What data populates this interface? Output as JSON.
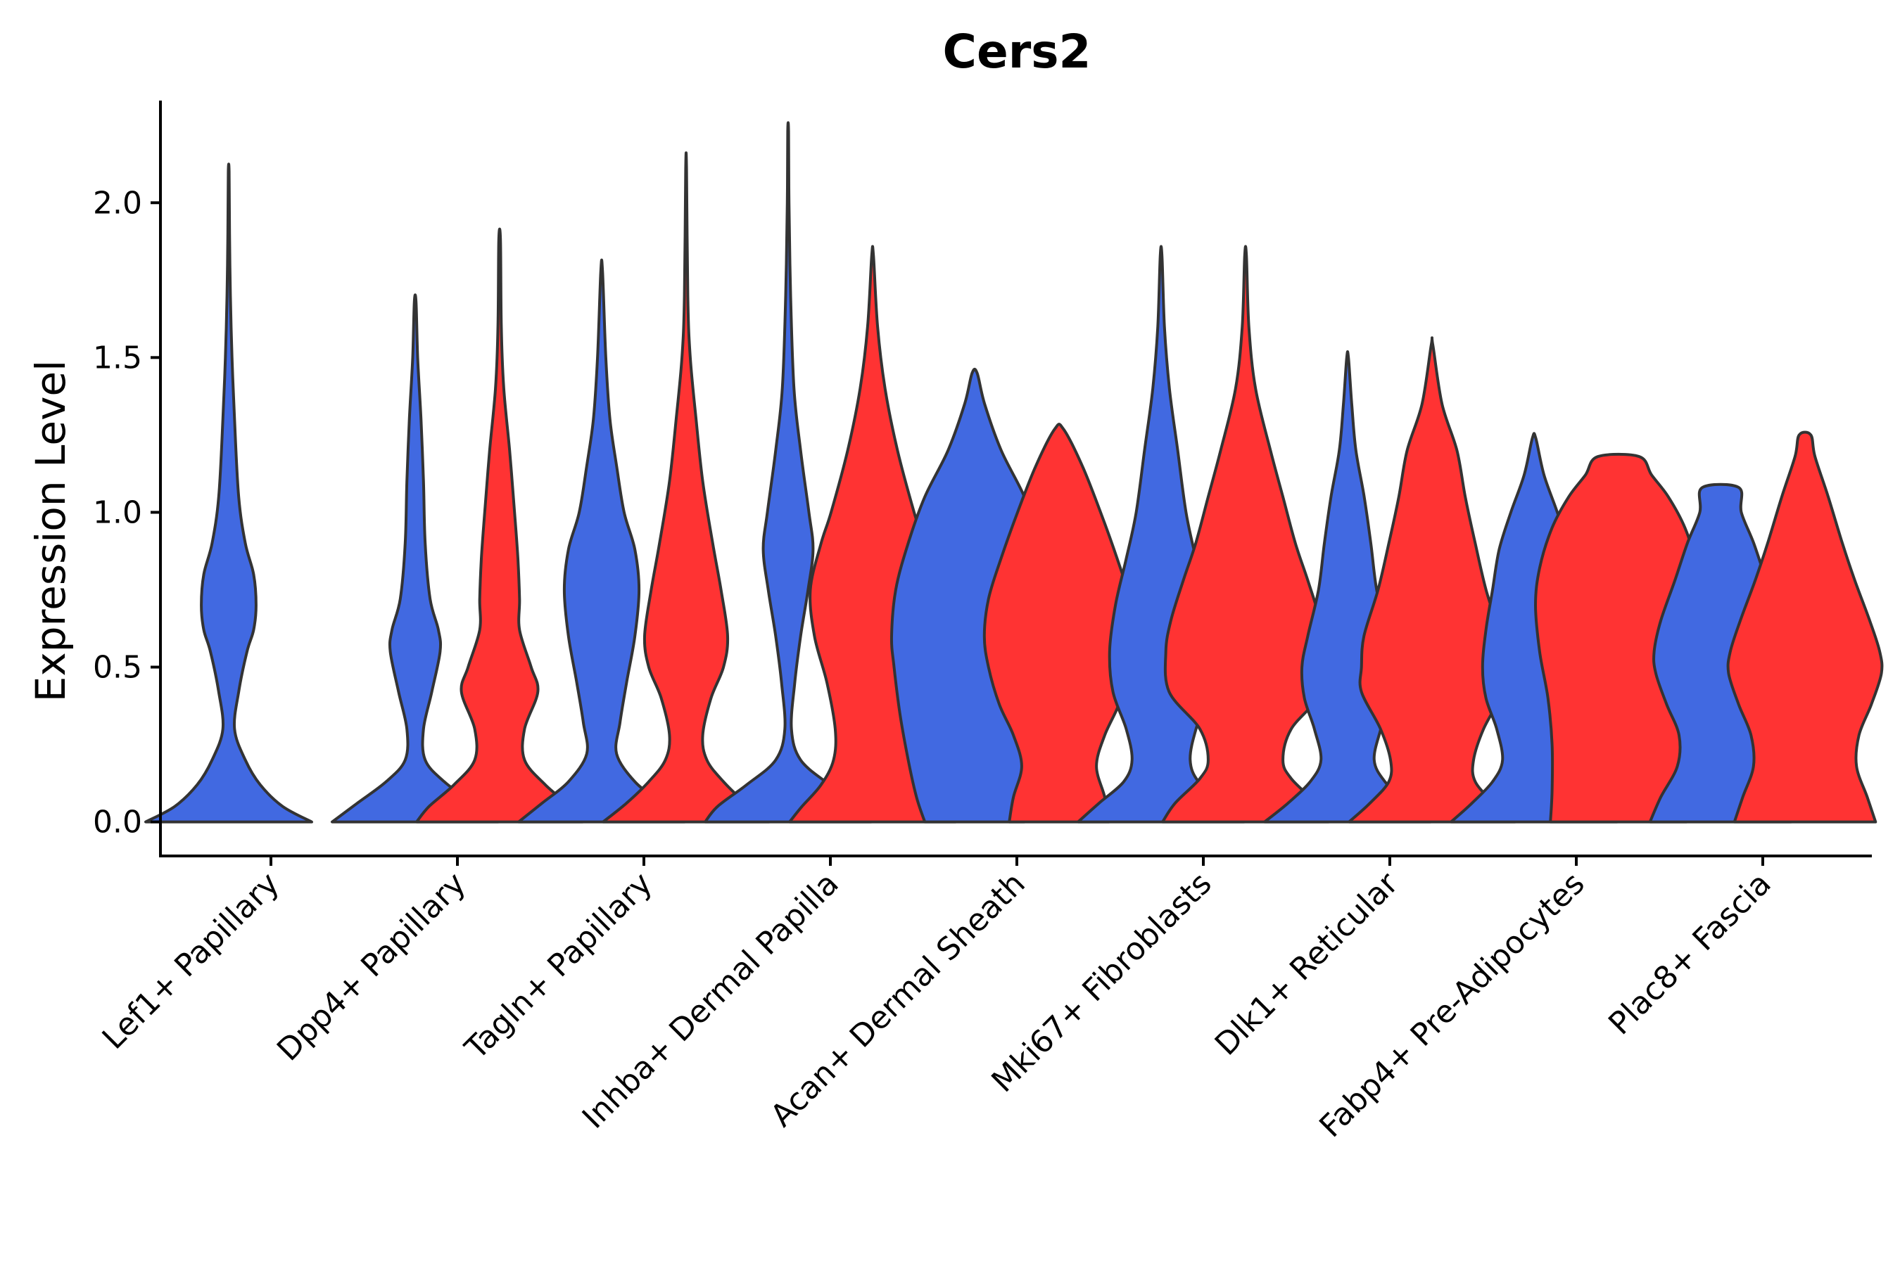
{
  "chart_data": {
    "type": "violin",
    "title": "Cers2",
    "xlabel": "",
    "ylabel": "Expression Level",
    "ylim": [
      -0.11,
      2.33
    ],
    "yticks": [
      "0.0",
      "0.5",
      "1.0",
      "1.5",
      "2.0"
    ],
    "ytick_values": [
      0.0,
      0.5,
      1.0,
      1.5,
      2.0
    ],
    "categories": [
      "Lef1+ Papillary",
      "Dpp4+ Papillary",
      "Tagln+ Papillary",
      "Inhba+ Dermal Papilla",
      "Acan+ Dermal Sheath",
      "Mki67+ Fibroblasts",
      "Dlk1+ Reticular",
      "Fabp4+ Pre-Adipocytes",
      "Plac8+ Fascia"
    ],
    "colors": {
      "blue_group": "#4169E1",
      "red_group": "#FF3333",
      "outline": "#333333"
    },
    "violins": [
      {
        "category": "Lef1+ Papillary",
        "group": "blue",
        "max": 2.1,
        "profile": [
          [
            0.0,
            1.0
          ],
          [
            0.05,
            0.65
          ],
          [
            0.12,
            0.38
          ],
          [
            0.2,
            0.2
          ],
          [
            0.3,
            0.07
          ],
          [
            0.42,
            0.12
          ],
          [
            0.55,
            0.22
          ],
          [
            0.62,
            0.3
          ],
          [
            0.7,
            0.33
          ],
          [
            0.8,
            0.3
          ],
          [
            0.9,
            0.2
          ],
          [
            1.05,
            0.12
          ],
          [
            1.3,
            0.07
          ],
          [
            1.5,
            0.04
          ],
          [
            1.7,
            0.02
          ],
          [
            1.9,
            0.01
          ],
          [
            2.1,
            0.005
          ]
        ]
      },
      {
        "category": "Dpp4+ Papillary",
        "group": "blue",
        "max": 1.68,
        "profile": [
          [
            0.0,
            1.0
          ],
          [
            0.06,
            0.7
          ],
          [
            0.13,
            0.35
          ],
          [
            0.2,
            0.12
          ],
          [
            0.3,
            0.1
          ],
          [
            0.42,
            0.2
          ],
          [
            0.55,
            0.3
          ],
          [
            0.62,
            0.28
          ],
          [
            0.72,
            0.18
          ],
          [
            0.9,
            0.12
          ],
          [
            1.1,
            0.1
          ],
          [
            1.3,
            0.07
          ],
          [
            1.5,
            0.03
          ],
          [
            1.68,
            0.01
          ]
        ]
      },
      {
        "category": "Dpp4+ Papillary",
        "group": "red",
        "max": 1.88,
        "profile": [
          [
            0.0,
            1.0
          ],
          [
            0.05,
            0.85
          ],
          [
            0.12,
            0.55
          ],
          [
            0.2,
            0.3
          ],
          [
            0.3,
            0.3
          ],
          [
            0.42,
            0.46
          ],
          [
            0.5,
            0.38
          ],
          [
            0.62,
            0.24
          ],
          [
            0.72,
            0.24
          ],
          [
            0.85,
            0.22
          ],
          [
            1.0,
            0.18
          ],
          [
            1.2,
            0.12
          ],
          [
            1.4,
            0.05
          ],
          [
            1.6,
            0.02
          ],
          [
            1.88,
            0.01
          ]
        ]
      },
      {
        "category": "Tagln+ Papillary",
        "group": "blue",
        "max": 1.78,
        "profile": [
          [
            0.0,
            1.0
          ],
          [
            0.06,
            0.72
          ],
          [
            0.13,
            0.4
          ],
          [
            0.22,
            0.18
          ],
          [
            0.32,
            0.22
          ],
          [
            0.45,
            0.3
          ],
          [
            0.6,
            0.4
          ],
          [
            0.75,
            0.45
          ],
          [
            0.88,
            0.4
          ],
          [
            1.0,
            0.27
          ],
          [
            1.15,
            0.18
          ],
          [
            1.3,
            0.1
          ],
          [
            1.5,
            0.05
          ],
          [
            1.78,
            0.01
          ]
        ]
      },
      {
        "category": "Tagln+ Papillary",
        "group": "red",
        "max": 2.11,
        "profile": [
          [
            0.0,
            1.0
          ],
          [
            0.06,
            0.72
          ],
          [
            0.13,
            0.45
          ],
          [
            0.2,
            0.25
          ],
          [
            0.28,
            0.2
          ],
          [
            0.4,
            0.3
          ],
          [
            0.5,
            0.45
          ],
          [
            0.6,
            0.5
          ],
          [
            0.75,
            0.42
          ],
          [
            0.9,
            0.32
          ],
          [
            1.1,
            0.2
          ],
          [
            1.3,
            0.12
          ],
          [
            1.5,
            0.05
          ],
          [
            1.7,
            0.02
          ],
          [
            2.11,
            0.005
          ]
        ]
      },
      {
        "category": "Inhba+ Dermal Papilla",
        "group": "blue",
        "max": 2.23,
        "profile": [
          [
            0.0,
            1.0
          ],
          [
            0.05,
            0.85
          ],
          [
            0.12,
            0.5
          ],
          [
            0.2,
            0.15
          ],
          [
            0.3,
            0.04
          ],
          [
            0.45,
            0.08
          ],
          [
            0.6,
            0.15
          ],
          [
            0.75,
            0.24
          ],
          [
            0.88,
            0.3
          ],
          [
            1.0,
            0.25
          ],
          [
            1.2,
            0.15
          ],
          [
            1.4,
            0.07
          ],
          [
            1.7,
            0.03
          ],
          [
            2.0,
            0.01
          ],
          [
            2.23,
            0.005
          ]
        ]
      },
      {
        "category": "Inhba+ Dermal Papilla",
        "group": "red",
        "max": 1.83,
        "profile": [
          [
            0.0,
            1.0
          ],
          [
            0.05,
            0.85
          ],
          [
            0.12,
            0.62
          ],
          [
            0.2,
            0.47
          ],
          [
            0.3,
            0.45
          ],
          [
            0.45,
            0.55
          ],
          [
            0.6,
            0.7
          ],
          [
            0.75,
            0.75
          ],
          [
            0.9,
            0.62
          ],
          [
            1.0,
            0.5
          ],
          [
            1.2,
            0.3
          ],
          [
            1.4,
            0.15
          ],
          [
            1.6,
            0.06
          ],
          [
            1.83,
            0.01
          ]
        ]
      },
      {
        "category": "Acan+ Dermal Sheath",
        "group": "blue",
        "max": 1.45,
        "profile": [
          [
            0.0,
            0.6
          ],
          [
            0.08,
            0.7
          ],
          [
            0.2,
            0.8
          ],
          [
            0.35,
            0.9
          ],
          [
            0.5,
            0.97
          ],
          [
            0.6,
            1.0
          ],
          [
            0.75,
            0.95
          ],
          [
            0.9,
            0.8
          ],
          [
            1.05,
            0.6
          ],
          [
            1.2,
            0.32
          ],
          [
            1.35,
            0.12
          ],
          [
            1.45,
            0.03
          ]
        ]
      },
      {
        "category": "Acan+ Dermal Sheath",
        "group": "red",
        "max": 1.27,
        "profile": [
          [
            0.0,
            0.6
          ],
          [
            0.08,
            0.55
          ],
          [
            0.18,
            0.45
          ],
          [
            0.28,
            0.55
          ],
          [
            0.38,
            0.72
          ],
          [
            0.5,
            0.85
          ],
          [
            0.6,
            0.9
          ],
          [
            0.72,
            0.85
          ],
          [
            0.85,
            0.7
          ],
          [
            1.0,
            0.5
          ],
          [
            1.15,
            0.28
          ],
          [
            1.27,
            0.05
          ]
        ]
      },
      {
        "category": "Mki67+ Fibroblasts",
        "group": "blue",
        "max": 1.83,
        "profile": [
          [
            0.0,
            1.0
          ],
          [
            0.06,
            0.75
          ],
          [
            0.13,
            0.45
          ],
          [
            0.2,
            0.35
          ],
          [
            0.3,
            0.42
          ],
          [
            0.42,
            0.58
          ],
          [
            0.55,
            0.62
          ],
          [
            0.7,
            0.55
          ],
          [
            0.85,
            0.42
          ],
          [
            1.0,
            0.3
          ],
          [
            1.2,
            0.2
          ],
          [
            1.4,
            0.1
          ],
          [
            1.6,
            0.04
          ],
          [
            1.83,
            0.01
          ]
        ]
      },
      {
        "category": "Mki67+ Fibroblasts",
        "group": "red",
        "max": 1.83,
        "profile": [
          [
            0.0,
            1.0
          ],
          [
            0.06,
            0.85
          ],
          [
            0.14,
            0.55
          ],
          [
            0.2,
            0.45
          ],
          [
            0.3,
            0.55
          ],
          [
            0.42,
            0.92
          ],
          [
            0.55,
            0.96
          ],
          [
            0.65,
            0.9
          ],
          [
            0.78,
            0.75
          ],
          [
            0.9,
            0.6
          ],
          [
            1.05,
            0.45
          ],
          [
            1.2,
            0.3
          ],
          [
            1.4,
            0.12
          ],
          [
            1.6,
            0.04
          ],
          [
            1.83,
            0.01
          ]
        ]
      },
      {
        "category": "Dlk1+ Reticular",
        "group": "blue",
        "max": 1.5,
        "profile": [
          [
            0.0,
            1.0
          ],
          [
            0.06,
            0.72
          ],
          [
            0.13,
            0.45
          ],
          [
            0.2,
            0.32
          ],
          [
            0.3,
            0.4
          ],
          [
            0.4,
            0.52
          ],
          [
            0.5,
            0.55
          ],
          [
            0.6,
            0.48
          ],
          [
            0.75,
            0.35
          ],
          [
            0.9,
            0.28
          ],
          [
            1.05,
            0.2
          ],
          [
            1.2,
            0.1
          ],
          [
            1.35,
            0.05
          ],
          [
            1.5,
            0.01
          ]
        ]
      },
      {
        "category": "Dlk1+ Reticular",
        "group": "red",
        "max": 1.54,
        "profile": [
          [
            0.0,
            1.0
          ],
          [
            0.06,
            0.75
          ],
          [
            0.13,
            0.52
          ],
          [
            0.2,
            0.5
          ],
          [
            0.3,
            0.62
          ],
          [
            0.42,
            0.85
          ],
          [
            0.5,
            0.85
          ],
          [
            0.6,
            0.82
          ],
          [
            0.75,
            0.65
          ],
          [
            0.9,
            0.52
          ],
          [
            1.05,
            0.4
          ],
          [
            1.2,
            0.3
          ],
          [
            1.35,
            0.12
          ],
          [
            1.54,
            0.01
          ]
        ]
      },
      {
        "category": "Fabp4+ Pre-Adipocytes",
        "group": "blue",
        "max": 1.24,
        "profile": [
          [
            0.0,
            1.0
          ],
          [
            0.06,
            0.75
          ],
          [
            0.13,
            0.5
          ],
          [
            0.2,
            0.38
          ],
          [
            0.3,
            0.45
          ],
          [
            0.4,
            0.58
          ],
          [
            0.5,
            0.62
          ],
          [
            0.62,
            0.58
          ],
          [
            0.75,
            0.5
          ],
          [
            0.88,
            0.42
          ],
          [
            1.0,
            0.28
          ],
          [
            1.12,
            0.12
          ],
          [
            1.24,
            0.02
          ]
        ]
      },
      {
        "category": "Fabp4+ Pre-Adipocytes",
        "group": "red",
        "max": 1.18,
        "profile": [
          [
            0.0,
            0.82
          ],
          [
            0.1,
            0.8
          ],
          [
            0.25,
            0.8
          ],
          [
            0.4,
            0.85
          ],
          [
            0.55,
            0.95
          ],
          [
            0.7,
            1.0
          ],
          [
            0.82,
            0.95
          ],
          [
            0.95,
            0.8
          ],
          [
            1.05,
            0.6
          ],
          [
            1.12,
            0.4
          ],
          [
            1.18,
            0.25
          ]
        ]
      },
      {
        "category": "Plac8+ Fascia",
        "group": "blue",
        "max": 1.08,
        "profile": [
          [
            0.0,
            0.85
          ],
          [
            0.08,
            0.72
          ],
          [
            0.18,
            0.52
          ],
          [
            0.28,
            0.5
          ],
          [
            0.38,
            0.65
          ],
          [
            0.48,
            0.78
          ],
          [
            0.55,
            0.8
          ],
          [
            0.65,
            0.72
          ],
          [
            0.78,
            0.55
          ],
          [
            0.9,
            0.4
          ],
          [
            1.0,
            0.25
          ],
          [
            1.08,
            0.22
          ]
        ]
      },
      {
        "category": "Plac8+ Fascia",
        "group": "red",
        "max": 1.25,
        "profile": [
          [
            0.0,
            0.85
          ],
          [
            0.08,
            0.75
          ],
          [
            0.18,
            0.62
          ],
          [
            0.28,
            0.65
          ],
          [
            0.38,
            0.8
          ],
          [
            0.48,
            0.92
          ],
          [
            0.55,
            0.9
          ],
          [
            0.65,
            0.78
          ],
          [
            0.78,
            0.6
          ],
          [
            0.9,
            0.45
          ],
          [
            1.05,
            0.28
          ],
          [
            1.18,
            0.12
          ],
          [
            1.25,
            0.07
          ]
        ]
      }
    ]
  }
}
